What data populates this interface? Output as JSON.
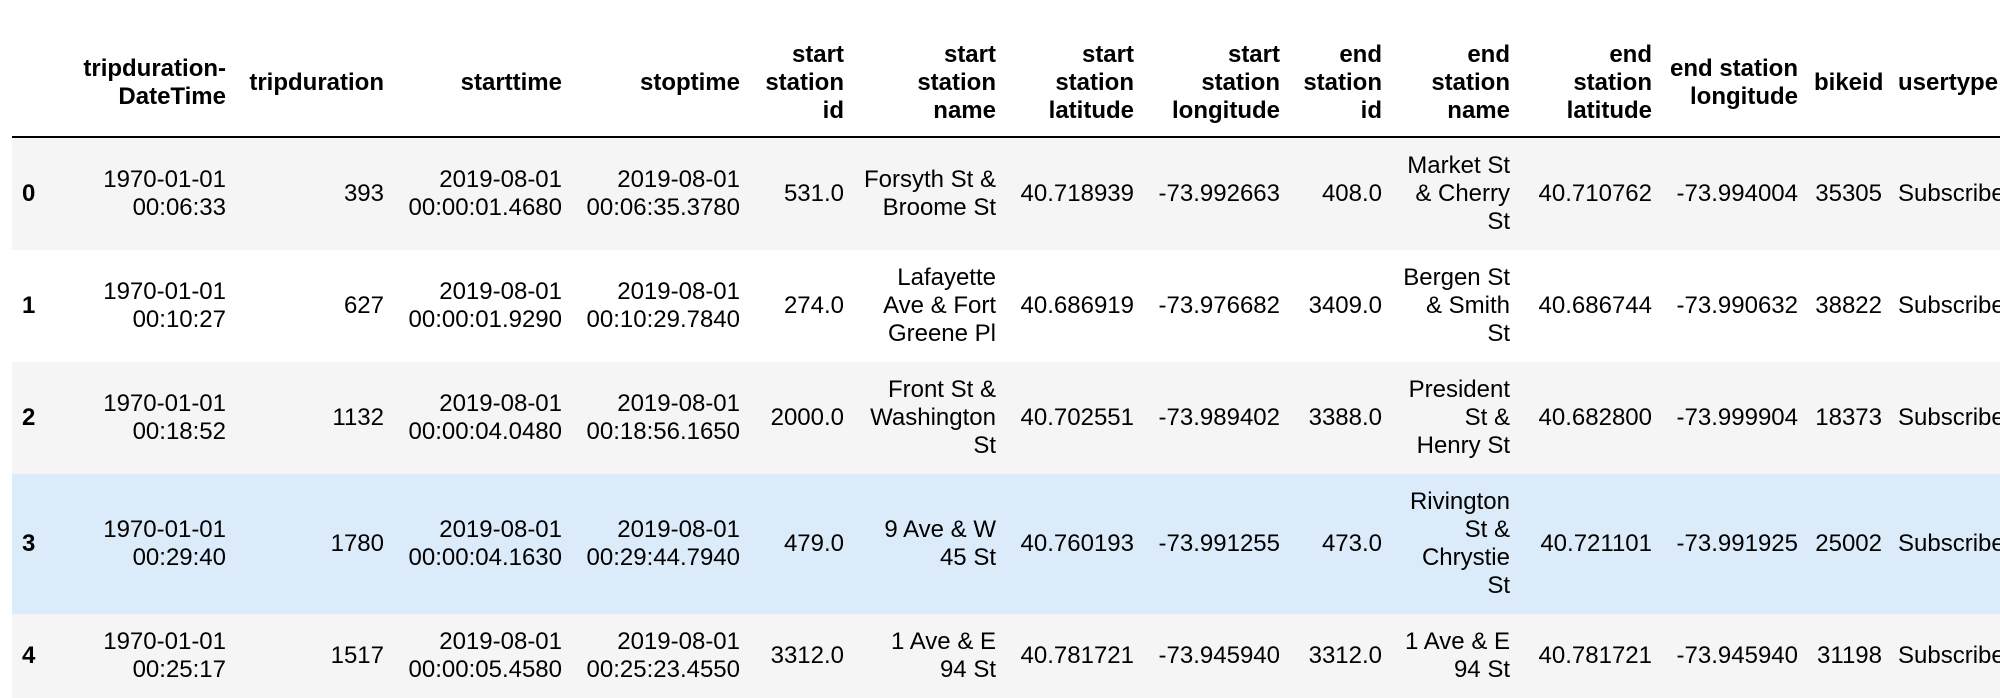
{
  "table": {
    "columns": [
      "",
      "tripduration-DateTime",
      "tripduration",
      "starttime",
      "stoptime",
      "start station id",
      "start station name",
      "start station latitude",
      "start station longitude",
      "end station id",
      "end station name",
      "end station latitude",
      "end station longitude",
      "bikeid",
      "usertype"
    ],
    "rows": [
      [
        "0",
        "1970-01-01 00:06:33",
        "393",
        "2019-08-01 00:00:01.4680",
        "2019-08-01 00:06:35.3780",
        "531.0",
        "Forsyth St & Broome St",
        "40.718939",
        "-73.992663",
        "408.0",
        "Market St & Cherry St",
        "40.710762",
        "-73.994004",
        "35305",
        "Subscribe"
      ],
      [
        "1",
        "1970-01-01 00:10:27",
        "627",
        "2019-08-01 00:00:01.9290",
        "2019-08-01 00:10:29.7840",
        "274.0",
        "Lafayette Ave & Fort Greene Pl",
        "40.686919",
        "-73.976682",
        "3409.0",
        "Bergen St & Smith St",
        "40.686744",
        "-73.990632",
        "38822",
        "Subscribe"
      ],
      [
        "2",
        "1970-01-01 00:18:52",
        "1132",
        "2019-08-01 00:00:04.0480",
        "2019-08-01 00:18:56.1650",
        "2000.0",
        "Front St & Washington St",
        "40.702551",
        "-73.989402",
        "3388.0",
        "President St & Henry St",
        "40.682800",
        "-73.999904",
        "18373",
        "Subscribe"
      ],
      [
        "3",
        "1970-01-01 00:29:40",
        "1780",
        "2019-08-01 00:00:04.1630",
        "2019-08-01 00:29:44.7940",
        "479.0",
        "9 Ave & W 45 St",
        "40.760193",
        "-73.991255",
        "473.0",
        "Rivington St & Chrystie St",
        "40.721101",
        "-73.991925",
        "25002",
        "Subscribe"
      ],
      [
        "4",
        "1970-01-01 00:25:17",
        "1517",
        "2019-08-01 00:00:05.4580",
        "2019-08-01 00:25:23.4550",
        "3312.0",
        "1 Ave & E 94 St",
        "40.781721",
        "-73.945940",
        "3312.0",
        "1 Ave & E 94 St",
        "40.781721",
        "-73.945940",
        "31198",
        "Subscribe"
      ]
    ]
  },
  "colors": {
    "odd_row": "#f5f5f5",
    "even_row": "#ffffff",
    "hover_row": "#dcebfa",
    "header_rule": "#000000"
  }
}
